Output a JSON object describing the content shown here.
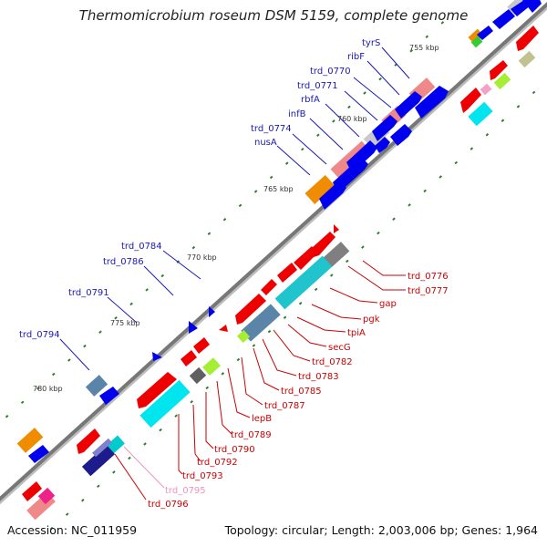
{
  "header": {
    "title": "Thermomicrobium roseum DSM 5159, complete genome"
  },
  "footer": {
    "accession": "Accession: NC_011959",
    "topology": "Topology: circular; Length: 2,003,006 bp; Genes: 1,964"
  },
  "colors": {
    "backbone": "#7a7a7a",
    "forward_label": "#1a1ab4",
    "reverse_label": "#cc0000",
    "pseudo_label": "#ef93c0",
    "tick": "#2e7d32",
    "forward_gene": "#0000ee",
    "reverse_gene": "#ee0000"
  },
  "kbp_labels": [
    "755 kbp",
    "760 kbp",
    "765 kbp",
    "770 kbp",
    "775 kbp",
    "780 kbp"
  ],
  "gene_labels": {
    "forward": [
      "tyrS",
      "ribF",
      "trd_0770",
      "trd_0771",
      "rbfA",
      "infB",
      "trd_0774",
      "nusA",
      "trd_0784",
      "trd_0786",
      "trd_0791",
      "trd_0794"
    ],
    "reverse": [
      "trd_0776",
      "trd_0777",
      "gap",
      "pgk",
      "tpiA",
      "secG",
      "trd_0782",
      "trd_0783",
      "trd_0785",
      "trd_0787",
      "lepB",
      "trd_0789",
      "trd_0790",
      "trd_0792",
      "trd_0793",
      "trd_0795",
      "trd_0796"
    ]
  }
}
